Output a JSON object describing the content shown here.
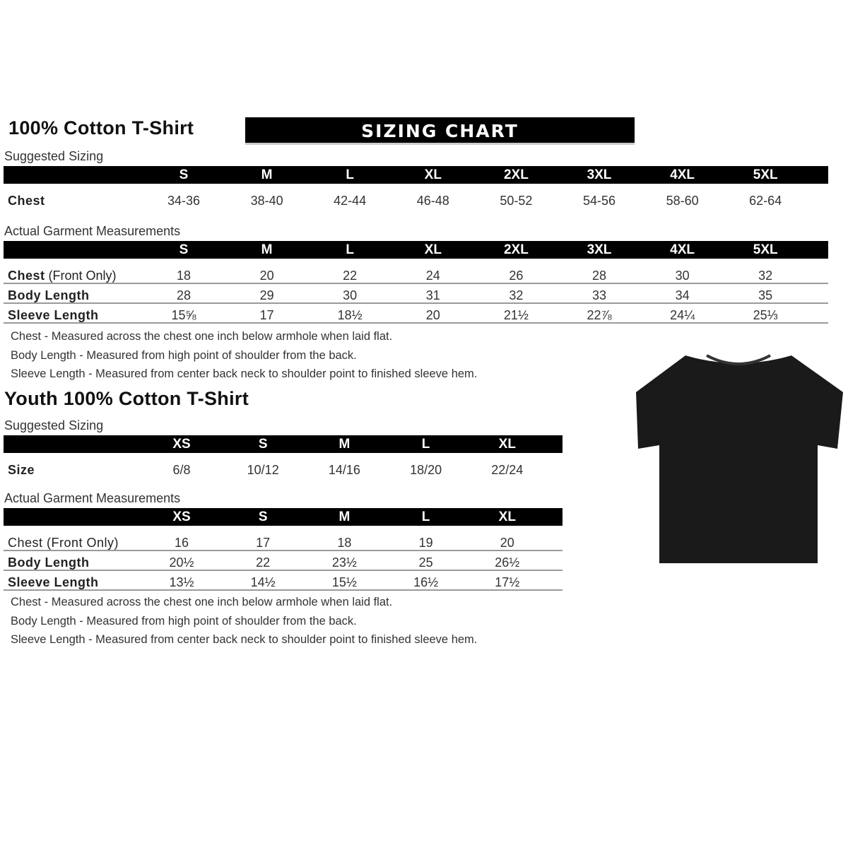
{
  "adult": {
    "title": "100% Cotton T-Shirt",
    "banner": "SIZING CHART",
    "suggested_label": "Suggested Sizing",
    "sizes": [
      "S",
      "M",
      "L",
      "XL",
      "2XL",
      "3XL",
      "4XL",
      "5XL"
    ],
    "suggested_rows": [
      {
        "label": "Chest",
        "values": [
          "34-36",
          "38-40",
          "42-44",
          "46-48",
          "50-52",
          "54-56",
          "58-60",
          "62-64"
        ]
      }
    ],
    "actual_label": "Actual Garment Measurements",
    "actual_rows": [
      {
        "label": "Chest",
        "label_suffix": " (Front Only)",
        "values": [
          "18",
          "20",
          "22",
          "24",
          "26",
          "28",
          "30",
          "32"
        ]
      },
      {
        "label": "Body Length",
        "values": [
          "28",
          "29",
          "30",
          "31",
          "32",
          "33",
          "34",
          "35"
        ]
      },
      {
        "label": "Sleeve Length",
        "values": [
          "15⅝",
          "17",
          "18½",
          "20",
          "21½",
          "22⅞",
          "24¼",
          "25⅓"
        ]
      }
    ],
    "notes": [
      "Chest - Measured across the chest one inch below armhole when laid flat.",
      "Body Length - Measured from high point of shoulder from the back.",
      "Sleeve Length - Measured from center back neck to shoulder point to finished sleeve hem."
    ]
  },
  "youth": {
    "title": "Youth 100% Cotton T-Shirt",
    "suggested_label": "Suggested Sizing",
    "sizes": [
      "XS",
      "S",
      "M",
      "L",
      "XL"
    ],
    "suggested_rows": [
      {
        "label": "Size",
        "values": [
          "6/8",
          "10/12",
          "14/16",
          "18/20",
          "22/24"
        ]
      }
    ],
    "actual_label": "Actual Garment Measurements",
    "actual_rows": [
      {
        "label": "Chest (Front Only)",
        "plain": true,
        "values": [
          "16",
          "17",
          "18",
          "19",
          "20"
        ]
      },
      {
        "label": "Body Length",
        "values": [
          "20½",
          "22",
          "23½",
          "25",
          "26½"
        ]
      },
      {
        "label": "Sleeve Length",
        "values": [
          "13½",
          "14½",
          "15½",
          "16½",
          "17½"
        ]
      }
    ],
    "notes": [
      "Chest - Measured across the chest one inch below armhole when laid flat.",
      "Body Length - Measured from high point of shoulder from the back.",
      "Sleeve Length - Measured from center back neck to shoulder point to finished sleeve hem."
    ]
  },
  "colors": {
    "header": "#000000",
    "divider": "#9a9a9a",
    "shirt": "#1a1a1a"
  }
}
